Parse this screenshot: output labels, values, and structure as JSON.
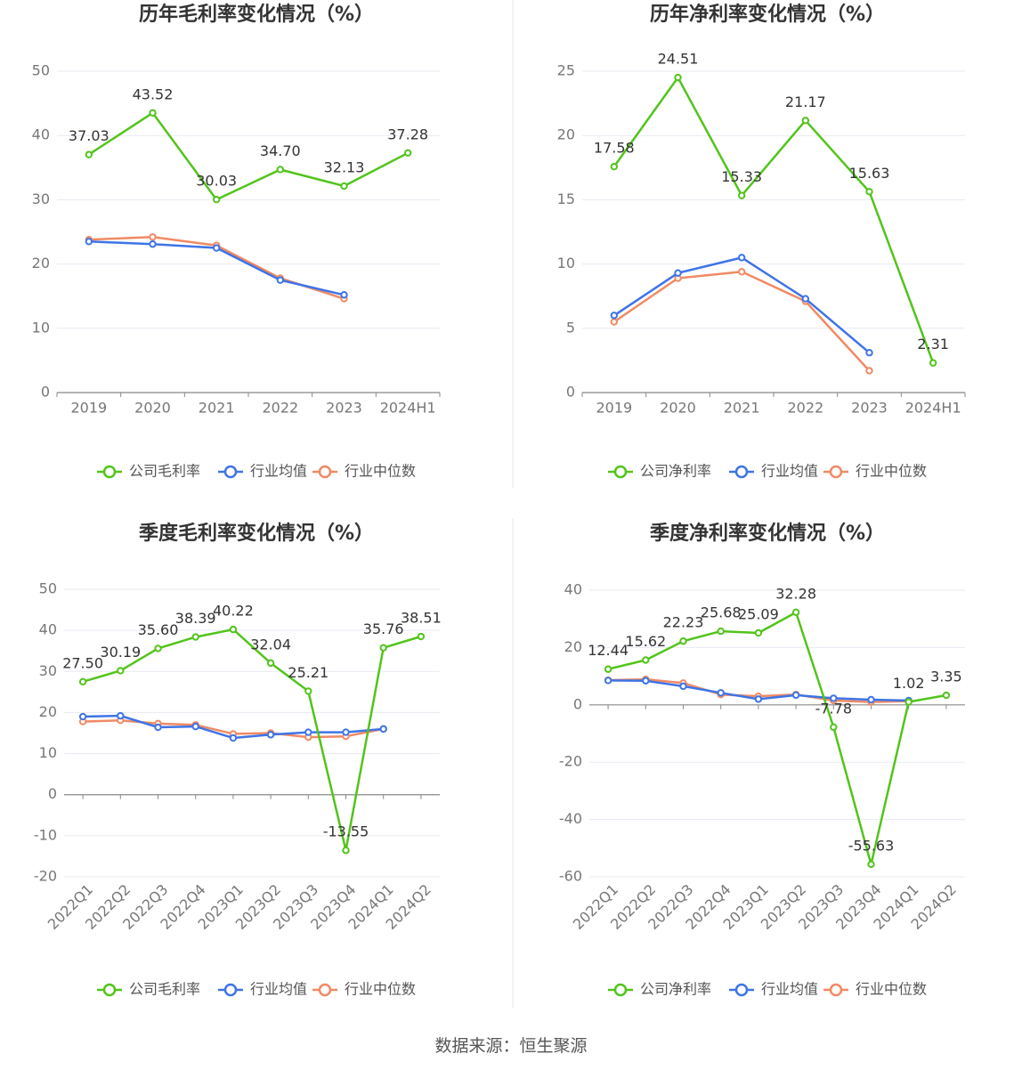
{
  "colors": {
    "company": "#52c41a",
    "avg": "#3e74e6",
    "median": "#f08a64",
    "grid": "#e8eaf2",
    "axis": "#888888",
    "tick": "#777777",
    "title": "#333333",
    "divider": "#e6e6e6"
  },
  "source_text": "数据来源：恒生聚源",
  "chart_data": [
    {
      "type": "line",
      "title": "历年毛利率变化情况（%）",
      "categories": [
        "2019",
        "2020",
        "2021",
        "2022",
        "2023",
        "2024H1"
      ],
      "ylim": [
        0,
        50
      ],
      "yticks": [
        0,
        10,
        20,
        30,
        40,
        50
      ],
      "rotate_labels": false,
      "series": [
        {
          "name": "公司毛利率",
          "color_key": "company",
          "labeled": true,
          "values": [
            37.03,
            43.52,
            30.03,
            34.7,
            32.13,
            37.28
          ],
          "labels": [
            "37.03",
            "43.52",
            "30.03",
            "34.70",
            "32.13",
            "37.28"
          ]
        },
        {
          "name": "行业均值",
          "color_key": "avg",
          "labeled": false,
          "values": [
            23.5,
            23.1,
            22.5,
            17.5,
            15.2,
            null
          ]
        },
        {
          "name": "行业中位数",
          "color_key": "median",
          "labeled": false,
          "values": [
            23.8,
            24.2,
            22.9,
            17.8,
            14.6,
            null
          ]
        }
      ]
    },
    {
      "type": "line",
      "title": "历年净利率变化情况（%）",
      "categories": [
        "2019",
        "2020",
        "2021",
        "2022",
        "2023",
        "2024H1"
      ],
      "ylim": [
        0,
        25
      ],
      "yticks": [
        0,
        5,
        10,
        15,
        20,
        25
      ],
      "rotate_labels": false,
      "series": [
        {
          "name": "公司净利率",
          "color_key": "company",
          "labeled": true,
          "values": [
            17.58,
            24.51,
            15.33,
            21.17,
            15.63,
            2.31
          ],
          "labels": [
            "17.58",
            "24.51",
            "15.33",
            "21.17",
            "15.63",
            "2.31"
          ]
        },
        {
          "name": "行业均值",
          "color_key": "avg",
          "labeled": false,
          "values": [
            6.0,
            9.3,
            10.5,
            7.3,
            3.1,
            null
          ]
        },
        {
          "name": "行业中位数",
          "color_key": "median",
          "labeled": false,
          "values": [
            5.5,
            8.9,
            9.4,
            7.1,
            1.7,
            null
          ]
        }
      ]
    },
    {
      "type": "line",
      "title": "季度毛利率变化情况（%）",
      "categories": [
        "2022Q1",
        "2022Q2",
        "2022Q3",
        "2022Q4",
        "2023Q1",
        "2023Q2",
        "2023Q3",
        "2023Q4",
        "2024Q1",
        "2024Q2"
      ],
      "ylim": [
        -20,
        50
      ],
      "yticks": [
        -20,
        -10,
        0,
        10,
        20,
        30,
        40,
        50
      ],
      "rotate_labels": true,
      "series": [
        {
          "name": "公司毛利率",
          "color_key": "company",
          "labeled": true,
          "values": [
            27.5,
            30.19,
            35.6,
            38.39,
            40.22,
            32.04,
            25.21,
            -13.55,
            35.76,
            38.51
          ],
          "labels": [
            "27.50",
            "30.19",
            "35.60",
            "38.39",
            "40.22",
            "32.04",
            "25.21",
            "-13.55",
            "35.76",
            "38.51"
          ]
        },
        {
          "name": "行业均值",
          "color_key": "avg",
          "labeled": false,
          "values": [
            19.0,
            19.2,
            16.4,
            16.6,
            13.8,
            14.6,
            15.2,
            15.2,
            16.0,
            null
          ]
        },
        {
          "name": "行业中位数",
          "color_key": "median",
          "labeled": false,
          "values": [
            17.8,
            18.1,
            17.3,
            17.0,
            14.8,
            15.0,
            14.0,
            14.2,
            16.0,
            null
          ]
        }
      ]
    },
    {
      "type": "line",
      "title": "季度净利率变化情况（%）",
      "categories": [
        "2022Q1",
        "2022Q2",
        "2022Q3",
        "2022Q4",
        "2023Q1",
        "2023Q2",
        "2023Q3",
        "2023Q4",
        "2024Q1",
        "2024Q2"
      ],
      "ylim": [
        -60,
        40
      ],
      "yticks": [
        -60,
        -40,
        -20,
        0,
        20,
        40
      ],
      "rotate_labels": true,
      "series": [
        {
          "name": "公司净利率",
          "color_key": "company",
          "labeled": true,
          "values": [
            12.44,
            15.62,
            22.23,
            25.68,
            25.09,
            32.28,
            -7.78,
            -55.63,
            1.02,
            3.35
          ],
          "labels": [
            "12.44",
            "15.62",
            "22.23",
            "25.68",
            "25.09",
            "32.28",
            "-7.78",
            "-55.63",
            "1.02",
            "3.35"
          ]
        },
        {
          "name": "行业均值",
          "color_key": "avg",
          "labeled": false,
          "values": [
            8.5,
            8.4,
            6.5,
            4.2,
            2.0,
            3.4,
            2.3,
            1.8,
            1.5,
            null
          ]
        },
        {
          "name": "行业中位数",
          "color_key": "median",
          "labeled": false,
          "values": [
            8.6,
            8.9,
            7.6,
            3.6,
            3.0,
            3.6,
            1.5,
            1.0,
            1.3,
            null
          ]
        }
      ]
    }
  ]
}
